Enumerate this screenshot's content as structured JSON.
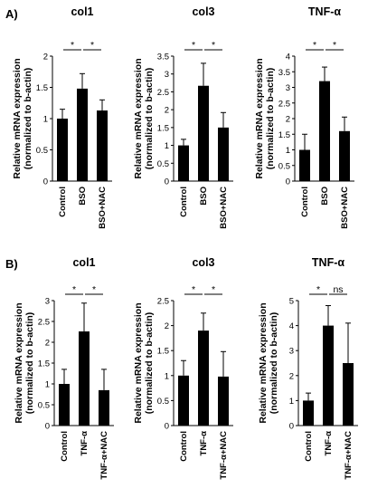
{
  "panels": [
    {
      "label": "A)"
    },
    {
      "label": "B)"
    }
  ],
  "chart_data": [
    {
      "type": "bar",
      "panel": "A)",
      "title": "col1",
      "ylabel": [
        "Relative mRNA expression",
        "(normalized to b-actin)"
      ],
      "categories": [
        "Control",
        "BSO",
        "BSO+NAC"
      ],
      "values": [
        1.0,
        1.48,
        1.13
      ],
      "errors": [
        0.15,
        0.24,
        0.17
      ],
      "ylim": [
        0,
        2
      ],
      "yticks": [
        "0",
        "0.5",
        "1",
        "1.5",
        "2"
      ],
      "significance": [
        {
          "from": 0,
          "to": 1,
          "label": "*"
        },
        {
          "from": 1,
          "to": 2,
          "label": "*"
        }
      ]
    },
    {
      "type": "bar",
      "panel": "A)",
      "title": "col3",
      "ylabel": [
        "Relative mRNA expression",
        "(normalized to b-actin)"
      ],
      "categories": [
        "Control",
        "BSO",
        "BSO+NAC"
      ],
      "values": [
        1.0,
        2.67,
        1.5
      ],
      "errors": [
        0.17,
        0.63,
        0.42
      ],
      "ylim": [
        0,
        3.5
      ],
      "yticks": [
        "0",
        "0.5",
        "1",
        "1.5",
        "2",
        "2.5",
        "3",
        "3.5"
      ],
      "significance": [
        {
          "from": 0,
          "to": 1,
          "label": "*"
        },
        {
          "from": 1,
          "to": 2,
          "label": "*"
        }
      ]
    },
    {
      "type": "bar",
      "panel": "A)",
      "title": "TNF-α",
      "ylabel": [
        "Relative mRNA expression",
        "(normalized to b-actin)"
      ],
      "categories": [
        "Control",
        "BSO",
        "BSO+NAC"
      ],
      "values": [
        1.0,
        3.2,
        1.6
      ],
      "errors": [
        0.5,
        0.45,
        0.45
      ],
      "ylim": [
        0,
        4
      ],
      "yticks": [
        "0",
        "0.5",
        "1",
        "1.5",
        "2",
        "2.5",
        "3",
        "3.5",
        "4"
      ],
      "significance": [
        {
          "from": 0,
          "to": 1,
          "label": "*"
        },
        {
          "from": 1,
          "to": 2,
          "label": "*"
        }
      ]
    },
    {
      "type": "bar",
      "panel": "B)",
      "title": "col1",
      "ylabel": [
        "Relative mRNA expression",
        "(normalized to b-actin)"
      ],
      "categories": [
        "Control",
        "TNF-α",
        "TNF-α+NAC"
      ],
      "values": [
        1.0,
        2.26,
        0.85
      ],
      "errors": [
        0.35,
        0.68,
        0.5
      ],
      "ylim": [
        0,
        3
      ],
      "yticks": [
        "0",
        "0.5",
        "1",
        "1.5",
        "2",
        "2.5",
        "3"
      ],
      "significance": [
        {
          "from": 0,
          "to": 1,
          "label": "*"
        },
        {
          "from": 1,
          "to": 2,
          "label": "*"
        }
      ]
    },
    {
      "type": "bar",
      "panel": "B)",
      "title": "col3",
      "ylabel": [
        "Relative mRNA expression",
        "(normalized to b-actin)"
      ],
      "categories": [
        "Control",
        "TNF-α",
        "TNF-α+NAC"
      ],
      "values": [
        1.0,
        1.9,
        0.98
      ],
      "errors": [
        0.3,
        0.35,
        0.5
      ],
      "ylim": [
        0,
        2.5
      ],
      "yticks": [
        "0",
        "0.5",
        "1",
        "1.5",
        "2",
        "2.5"
      ],
      "significance": [
        {
          "from": 0,
          "to": 1,
          "label": "*"
        },
        {
          "from": 1,
          "to": 2,
          "label": "*"
        }
      ]
    },
    {
      "type": "bar",
      "panel": "B)",
      "title": "TNF-α",
      "ylabel": [
        "Relative mRNA expression",
        "(normalized to b-actin)"
      ],
      "categories": [
        "Control",
        "TNF-α",
        "TNF-α+NAC"
      ],
      "values": [
        1.0,
        4.0,
        2.5
      ],
      "errors": [
        0.3,
        0.8,
        1.6
      ],
      "ylim": [
        0,
        5
      ],
      "yticks": [
        "0",
        "1",
        "2",
        "3",
        "4",
        "5"
      ],
      "significance": [
        {
          "from": 0,
          "to": 1,
          "label": "*"
        },
        {
          "from": 1,
          "to": 2,
          "label": "ns"
        }
      ]
    }
  ]
}
